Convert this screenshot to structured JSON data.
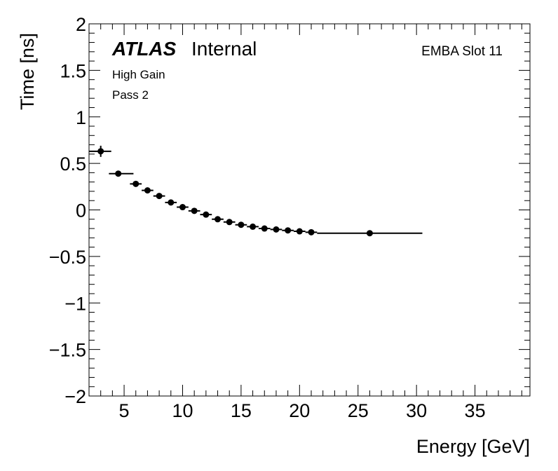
{
  "chart_data": {
    "type": "scatter",
    "xlabel": "Energy [GeV]",
    "ylabel": "Time [ns]",
    "xlim": [
      2,
      39.7
    ],
    "ylim": [
      -2,
      2
    ],
    "x_ticks": [
      5,
      10,
      15,
      20,
      25,
      30,
      35
    ],
    "x_tick_labels": [
      "5",
      "10",
      "15",
      "20",
      "25",
      "30",
      "35"
    ],
    "y_ticks": [
      -2,
      -1.5,
      -1,
      -0.5,
      0,
      0.5,
      1,
      1.5,
      2
    ],
    "y_tick_labels": [
      "−2",
      "−1.5",
      "−1",
      "−0.5",
      "0",
      "0.5",
      "1",
      "1.5",
      "2"
    ],
    "series": [
      {
        "name": "EMBA Slot 11",
        "points": [
          {
            "x": 3.0,
            "y": 0.63,
            "xlo": 2.0,
            "xhi": 3.9,
            "yerr": 0.06
          },
          {
            "x": 4.5,
            "y": 0.39,
            "xlo": 3.7,
            "xhi": 5.8,
            "yerr": 0.03
          },
          {
            "x": 6.0,
            "y": 0.28,
            "xlo": 5.5,
            "xhi": 6.5,
            "yerr": 0.03
          },
          {
            "x": 7.0,
            "y": 0.21,
            "xlo": 6.5,
            "xhi": 7.5,
            "yerr": 0.025
          },
          {
            "x": 8.0,
            "y": 0.15,
            "xlo": 7.5,
            "xhi": 8.5,
            "yerr": 0.025
          },
          {
            "x": 9.0,
            "y": 0.08,
            "xlo": 8.5,
            "xhi": 9.5,
            "yerr": 0.02
          },
          {
            "x": 10.0,
            "y": 0.03,
            "xlo": 9.5,
            "xhi": 10.5,
            "yerr": 0.02
          },
          {
            "x": 11.0,
            "y": -0.01,
            "xlo": 10.5,
            "xhi": 11.5,
            "yerr": 0.02
          },
          {
            "x": 12.0,
            "y": -0.05,
            "xlo": 11.5,
            "xhi": 12.5,
            "yerr": 0.02
          },
          {
            "x": 13.0,
            "y": -0.1,
            "xlo": 12.5,
            "xhi": 13.5,
            "yerr": 0.02
          },
          {
            "x": 14.0,
            "y": -0.13,
            "xlo": 13.5,
            "xhi": 14.5,
            "yerr": 0.02
          },
          {
            "x": 15.0,
            "y": -0.16,
            "xlo": 14.5,
            "xhi": 15.5,
            "yerr": 0.02
          },
          {
            "x": 16.0,
            "y": -0.18,
            "xlo": 15.5,
            "xhi": 16.5,
            "yerr": 0.02
          },
          {
            "x": 17.0,
            "y": -0.2,
            "xlo": 16.5,
            "xhi": 17.5,
            "yerr": 0.02
          },
          {
            "x": 18.0,
            "y": -0.21,
            "xlo": 17.5,
            "xhi": 18.5,
            "yerr": 0.02
          },
          {
            "x": 19.0,
            "y": -0.22,
            "xlo": 18.5,
            "xhi": 19.5,
            "yerr": 0.02
          },
          {
            "x": 20.0,
            "y": -0.23,
            "xlo": 19.5,
            "xhi": 20.5,
            "yerr": 0.02
          },
          {
            "x": 21.0,
            "y": -0.24,
            "xlo": 20.5,
            "xhi": 21.5,
            "yerr": 0.02
          },
          {
            "x": 26.0,
            "y": -0.25,
            "xlo": 21.5,
            "xhi": 30.5,
            "yerr": 0.01
          }
        ]
      }
    ],
    "grid": false,
    "annotations": {
      "experiment": "ATLAS",
      "status": "Internal",
      "gain": "High Gain",
      "pass": "Pass 2",
      "module": "EMBA Slot 11"
    },
    "colors": {
      "marker": "#000000",
      "axes": "#000000",
      "background": "#ffffff"
    }
  }
}
